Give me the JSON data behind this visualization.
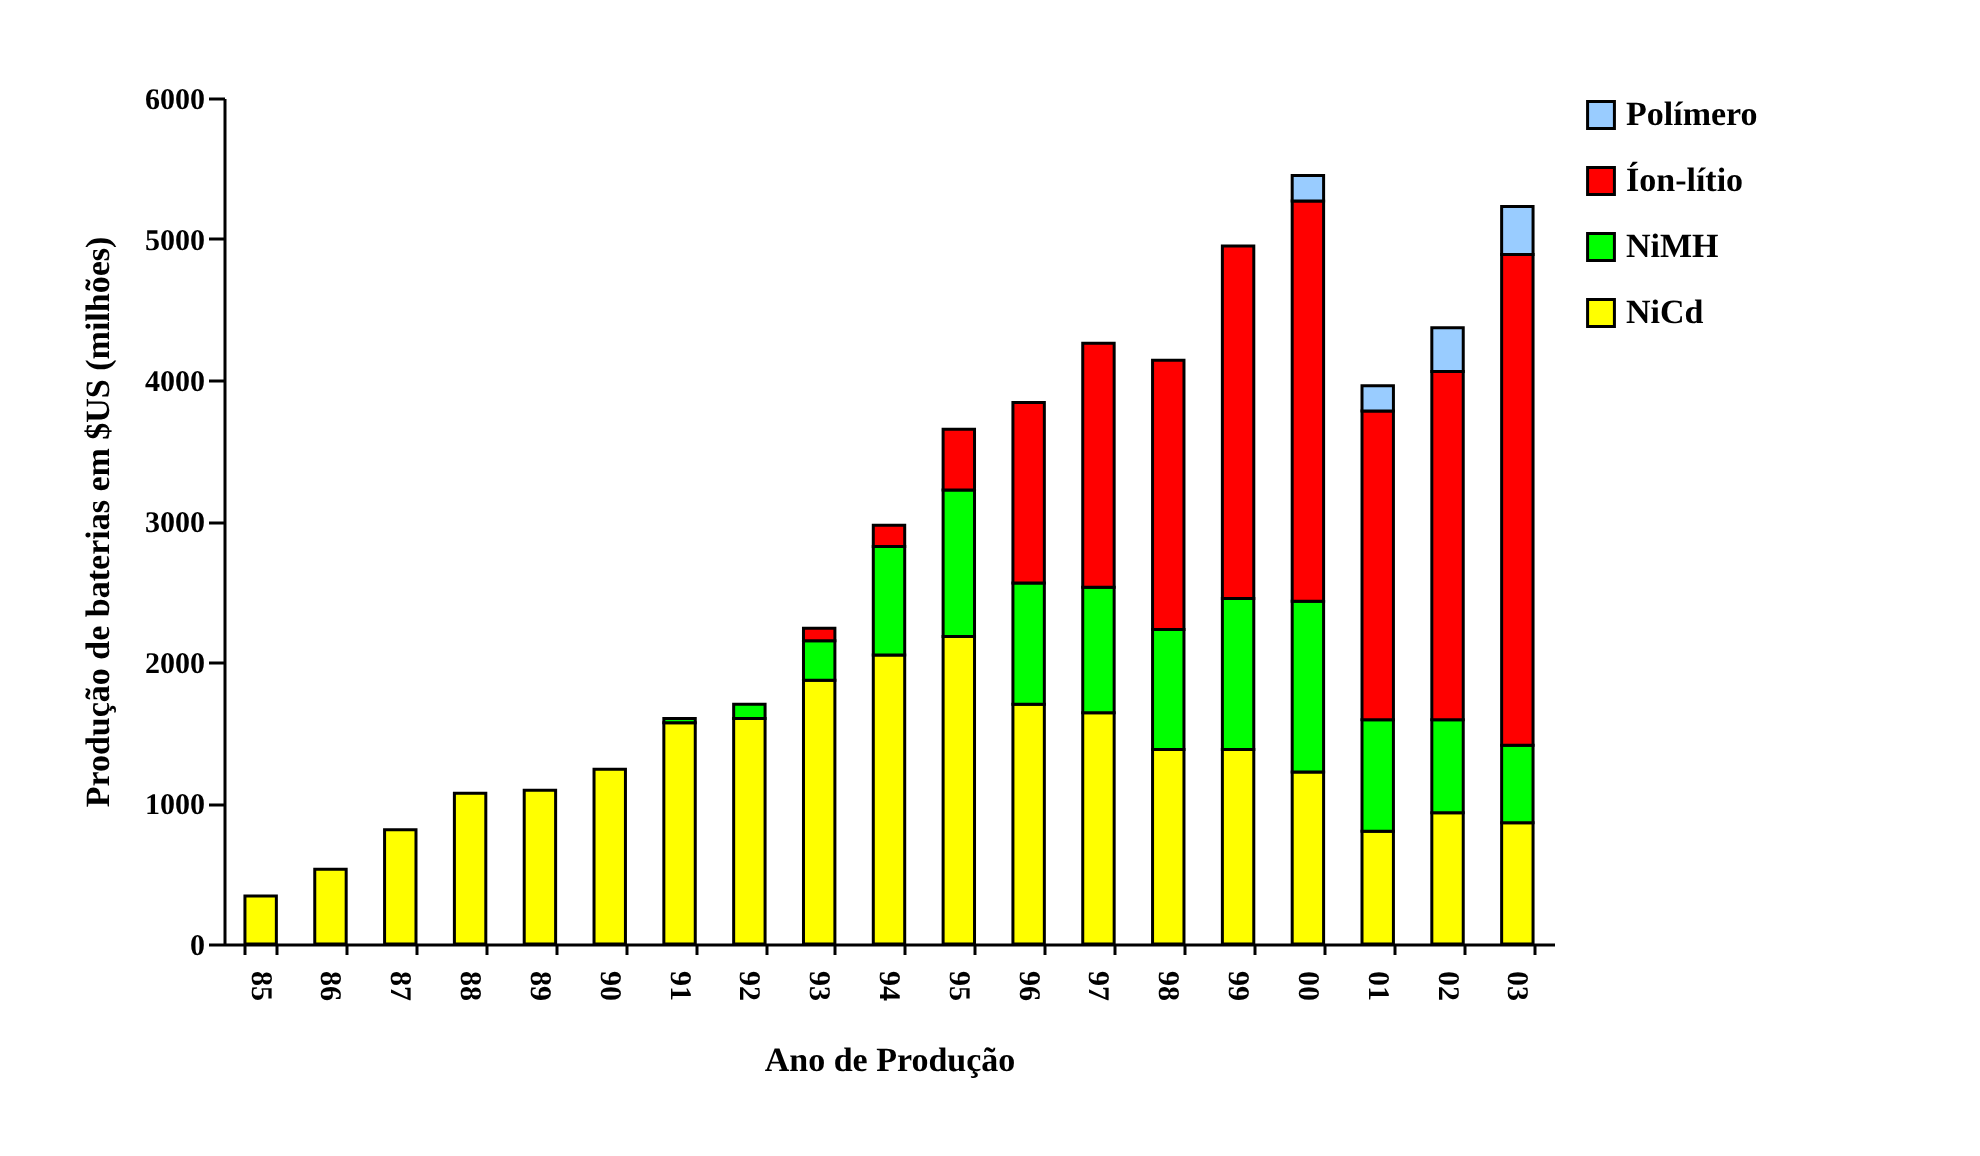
{
  "chart_data": {
    "type": "bar",
    "stacked": true,
    "xlabel": "Ano de Produção",
    "ylabel": "Produção de baterias em $US (milhões)",
    "categories": [
      "85",
      "86",
      "87",
      "88",
      "89",
      "90",
      "91",
      "92",
      "93",
      "94",
      "95",
      "96",
      "97",
      "98",
      "99",
      "00",
      "01",
      "02",
      "03"
    ],
    "series": [
      {
        "name": "NiCd",
        "color": "#ffff00",
        "values": [
          340,
          530,
          810,
          1070,
          1090,
          1240,
          1570,
          1600,
          1870,
          2050,
          2180,
          1700,
          1640,
          1380,
          1380,
          1220,
          800,
          930,
          860
        ]
      },
      {
        "name": "NiMH",
        "color": "#00ff00",
        "values": [
          null,
          null,
          null,
          null,
          null,
          null,
          30,
          100,
          280,
          770,
          1040,
          860,
          890,
          850,
          1070,
          1210,
          790,
          660,
          550
        ]
      },
      {
        "name": "Íon-lítio",
        "color": "#ff0000",
        "values": [
          null,
          null,
          null,
          null,
          null,
          null,
          null,
          null,
          90,
          150,
          430,
          1280,
          1730,
          1910,
          2500,
          2840,
          2190,
          2470,
          3480
        ]
      },
      {
        "name": "Polímero",
        "color": "#99ccff",
        "values": [
          null,
          null,
          null,
          null,
          null,
          null,
          null,
          null,
          null,
          null,
          null,
          null,
          null,
          null,
          null,
          180,
          180,
          310,
          340
        ]
      }
    ],
    "ylim": [
      0,
      6000
    ],
    "yticks": [
      0,
      1000,
      2000,
      3000,
      4000,
      5000,
      6000
    ],
    "grid": false,
    "legend": "right"
  }
}
